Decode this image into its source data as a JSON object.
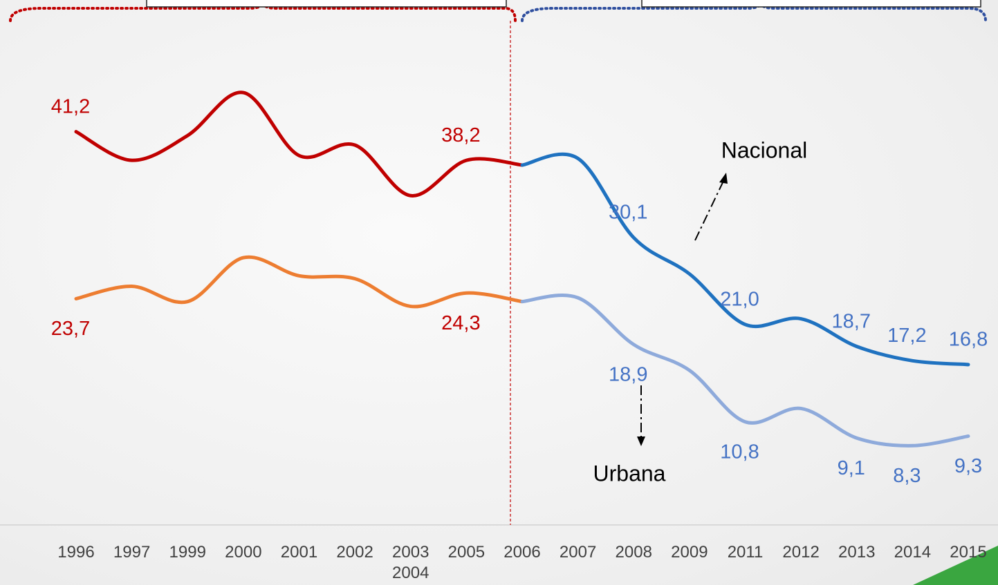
{
  "chart_data": {
    "type": "line",
    "categories": [
      "1996",
      "1997",
      "1999",
      "2000",
      "2001",
      "2002",
      "2003 2004",
      "2005",
      "2006",
      "2007",
      "2008",
      "2009",
      "2011",
      "2012",
      "2013",
      "2014",
      "2015"
    ],
    "series": [
      {
        "name": "Nacional",
        "color": [
          "#c00000",
          "#1f72c0"
        ],
        "values": [
          41.2,
          38.2,
          40.8,
          45.3,
          38.7,
          39.8,
          34.5,
          38.2,
          37.7,
          38.4,
          30.1,
          26.3,
          21.0,
          21.6,
          18.7,
          17.2,
          16.8
        ],
        "value_labels": [
          "41,2",
          null,
          null,
          null,
          null,
          null,
          null,
          "38,2",
          null,
          null,
          "30,1",
          null,
          "21,0",
          null,
          "18,7",
          "17,2",
          "16,8"
        ]
      },
      {
        "name": "Urbana",
        "color": [
          "#ed7d31",
          "#8eaadb"
        ],
        "values": [
          23.7,
          25.0,
          23.4,
          28.0,
          26.1,
          25.8,
          22.9,
          24.3,
          23.4,
          23.8,
          18.9,
          16.2,
          10.8,
          12.2,
          9.1,
          8.3,
          9.3
        ],
        "value_labels": [
          "23,7",
          null,
          null,
          null,
          null,
          null,
          null,
          "24,3",
          null,
          null,
          "18,9",
          null,
          "10,8",
          null,
          "9,1",
          "8,3",
          "9,3"
        ]
      }
    ],
    "label_colors": [
      "#c00000",
      "#4472c4"
    ],
    "divider": "2006",
    "ylim": [
      0,
      55
    ]
  }
}
